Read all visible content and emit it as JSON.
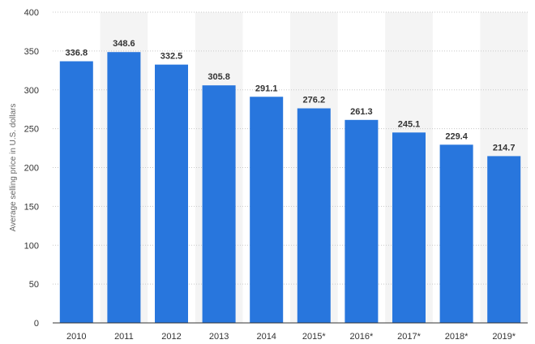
{
  "chart_data": {
    "type": "bar",
    "ylabel": "Average selling price in U.S. dollars",
    "xlabel": "",
    "title": "",
    "ylim": [
      0,
      400
    ],
    "yticks": [
      0,
      50,
      100,
      150,
      200,
      250,
      300,
      350,
      400
    ],
    "ytick_labels": [
      "0",
      "50",
      "100",
      "150",
      "200",
      "250",
      "300",
      "350",
      "400"
    ],
    "grid": true,
    "categories": [
      "2010",
      "2011",
      "2012",
      "2013",
      "2014",
      "2015*",
      "2016*",
      "2017*",
      "2018*",
      "2019*"
    ],
    "values": [
      336.8,
      348.6,
      332.5,
      305.8,
      291.1,
      276.2,
      261.3,
      245.1,
      229.4,
      214.7
    ],
    "data_labels": [
      "336.8",
      "348.6",
      "332.5",
      "305.8",
      "291.1",
      "276.2",
      "261.3",
      "245.1",
      "229.4",
      "214.7"
    ]
  },
  "colors": {
    "bar": "#2876dd",
    "band": "#f4f4f4",
    "grid": "#c8c8c8",
    "axis": "#333333"
  }
}
